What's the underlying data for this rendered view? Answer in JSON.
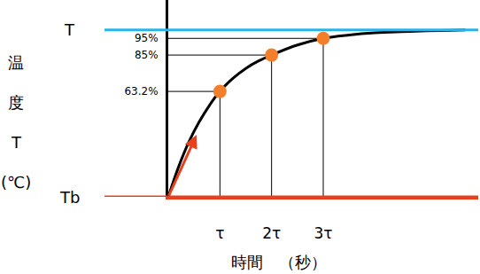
{
  "chart_data": {
    "type": "line",
    "x": [
      0,
      0.2,
      0.4,
      0.6,
      0.8,
      1,
      1.25,
      1.5,
      1.75,
      2,
      2.5,
      3,
      3.5,
      4,
      4.5,
      5,
      5.75
    ],
    "values": [
      0,
      18,
      33,
      45,
      55,
      63.2,
      71,
      77,
      81.5,
      85,
      91,
      95,
      97,
      98.3,
      99,
      99.5,
      100
    ],
    "color": "#000000",
    "points": {
      "x": [
        1,
        2,
        3
      ],
      "values": [
        63.2,
        85,
        95
      ],
      "color": "#f47f2a",
      "marker": "circle"
    },
    "hlines": [
      {
        "y": 100,
        "label": "T",
        "color": "#2ab4e6"
      },
      {
        "y": 0,
        "label": "Tb",
        "color": "#e8401c"
      }
    ],
    "xlim": [
      0,
      6
    ],
    "ylim": [
      0,
      118
    ],
    "xticks": [
      {
        "value": 1,
        "label": "τ"
      },
      {
        "value": 2,
        "label": "2τ"
      },
      {
        "value": 3,
        "label": "3τ"
      }
    ],
    "yticks": [
      {
        "value": 63.2,
        "label": "63.2%"
      },
      {
        "value": 85,
        "label": "85%"
      },
      {
        "value": 95,
        "label": "95%"
      }
    ],
    "xlabel": "時間　（秒）",
    "ylabel": [
      "温",
      "度",
      "T",
      "(℃)"
    ],
    "grid": false
  }
}
